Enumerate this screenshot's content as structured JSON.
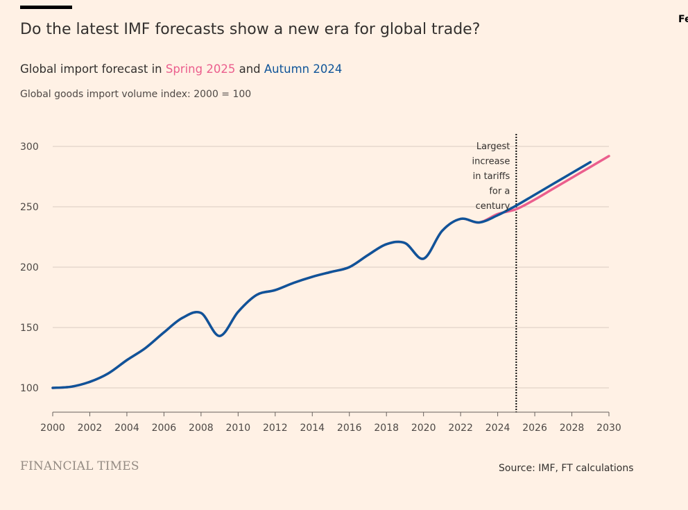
{
  "header": {
    "corner_text": "Fe",
    "title": "Do the latest IMF forecasts show a new era for global trade?",
    "subtitle_prefix": "Global import forecast in ",
    "subtitle_spring": "Spring 2025",
    "subtitle_and": " and ",
    "subtitle_autumn": "Autumn 2024",
    "unit": "Global goods import volume index: 2000 = 100"
  },
  "footer": {
    "brand": "FINANCIAL TIMES",
    "source": "Source: IMF, FT calculations"
  },
  "colors": {
    "background": "#fff1e5",
    "spring_2025": "#eb5e8d",
    "autumn_2024": "#0f5499",
    "grid": "#d9ccc1"
  },
  "chart_data": {
    "type": "line",
    "xlim": [
      2000,
      2030
    ],
    "ylim": [
      80,
      300
    ],
    "xticks": [
      "2000",
      "2002",
      "2004",
      "2006",
      "2008",
      "2010",
      "2012",
      "2014",
      "2016",
      "2018",
      "2020",
      "2022",
      "2024",
      "2026",
      "2028",
      "2030"
    ],
    "yticks": [
      "300",
      "250",
      "200",
      "150",
      "100"
    ],
    "grid": true,
    "series": [
      {
        "name": "Spring 2025",
        "color": "#eb5e8d",
        "x": [
          2000,
          2001,
          2002,
          2003,
          2004,
          2005,
          2006,
          2007,
          2008,
          2009,
          2010,
          2011,
          2012,
          2013,
          2014,
          2015,
          2016,
          2017,
          2018,
          2019,
          2020,
          2021,
          2022,
          2023,
          2024,
          2025,
          2026,
          2027,
          2028,
          2029,
          2030
        ],
        "y": [
          100,
          101,
          105,
          112,
          123,
          133,
          146,
          158,
          162,
          143,
          163,
          177,
          181,
          187,
          192,
          196,
          200,
          210,
          219,
          220,
          207,
          230,
          240,
          237,
          244,
          248,
          256,
          265,
          274,
          283,
          292
        ]
      },
      {
        "name": "Autumn 2024",
        "color": "#0f5499",
        "x": [
          2000,
          2001,
          2002,
          2003,
          2004,
          2005,
          2006,
          2007,
          2008,
          2009,
          2010,
          2011,
          2012,
          2013,
          2014,
          2015,
          2016,
          2017,
          2018,
          2019,
          2020,
          2021,
          2022,
          2023,
          2024,
          2025,
          2026,
          2027,
          2028,
          2029
        ],
        "y": [
          100,
          101,
          105,
          112,
          123,
          133,
          146,
          158,
          162,
          143,
          163,
          177,
          181,
          187,
          192,
          196,
          200,
          210,
          219,
          220,
          207,
          230,
          240,
          237,
          243,
          251,
          260,
          269,
          278,
          287
        ]
      }
    ],
    "annotation": {
      "x": 2025,
      "lines": [
        "Largest",
        "increase",
        "in tariffs",
        "for a",
        "century"
      ]
    }
  }
}
